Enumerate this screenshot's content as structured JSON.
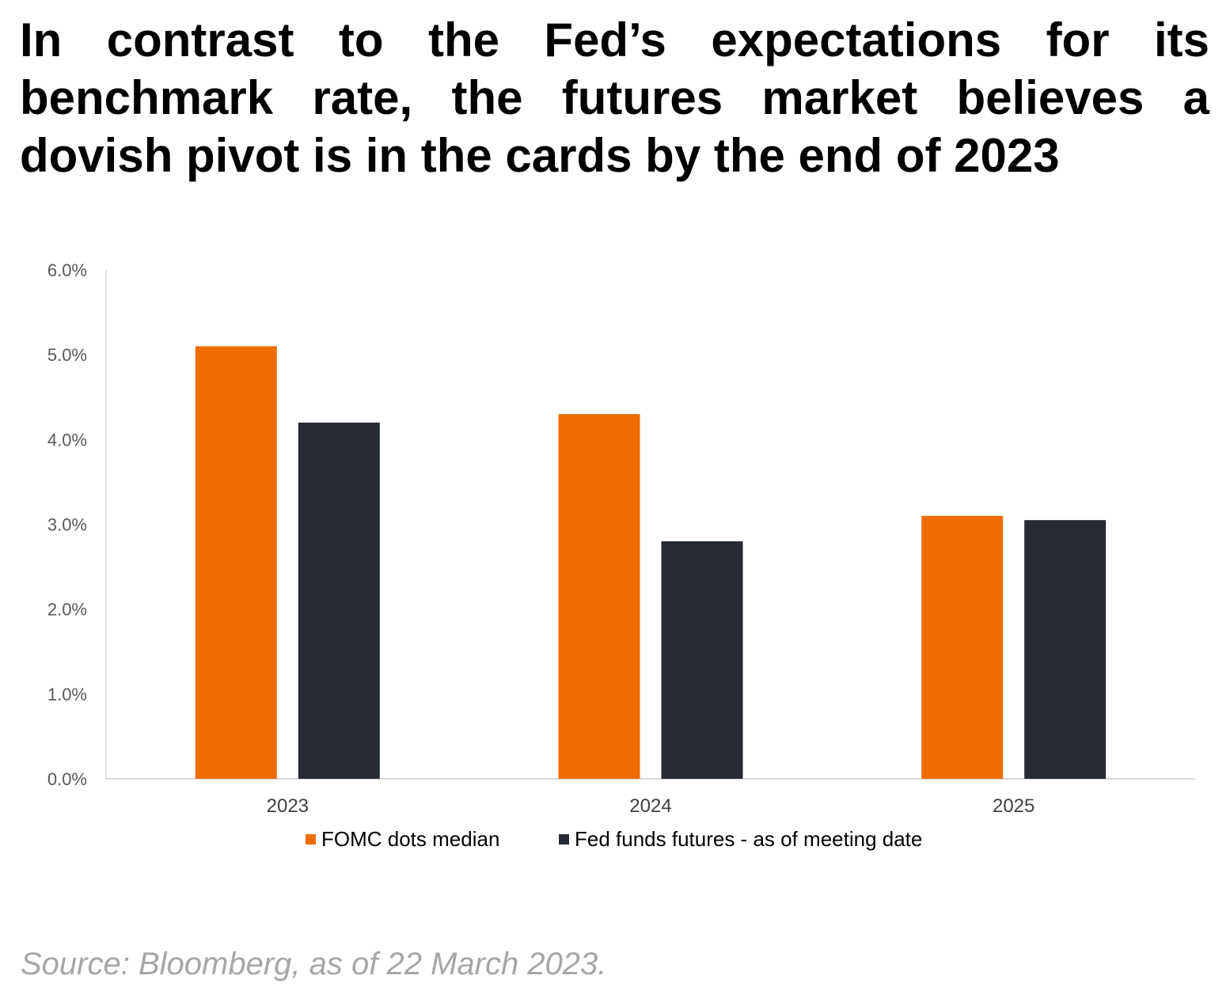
{
  "headline": "In contrast to the Fed’s expectations for its benchmark rate, the futures market believes a dovish pivot is in the cards by the end of 2023",
  "source": "Source: Bloomberg, as of 22 March 2023.",
  "chart_data": {
    "type": "bar",
    "title": "",
    "xlabel": "",
    "ylabel": "",
    "categories": [
      "2023",
      "2024",
      "2025"
    ],
    "series": [
      {
        "name": "FOMC dots median",
        "color": "#ef6c00",
        "values": [
          5.1,
          4.3,
          3.1
        ]
      },
      {
        "name": "Fed funds futures - as of meeting date",
        "color": "#272b36",
        "values": [
          4.2,
          2.8,
          3.05
        ]
      }
    ],
    "ylim": [
      0,
      6
    ],
    "yticks": [
      0,
      1,
      2,
      3,
      4,
      5,
      6
    ],
    "ytick_labels": [
      "0.0%",
      "1.0%",
      "2.0%",
      "3.0%",
      "4.0%",
      "5.0%",
      "6.0%"
    ],
    "grid": false,
    "legend_position": "bottom"
  }
}
